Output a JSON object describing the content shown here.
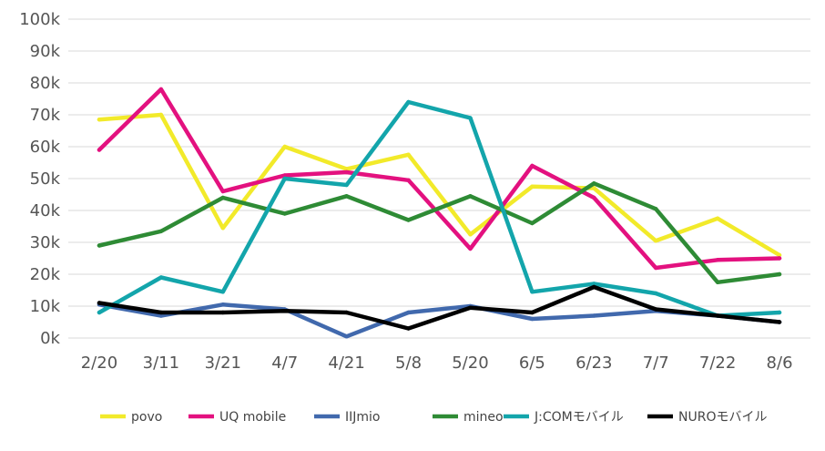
{
  "chart_data": {
    "type": "line",
    "title": "",
    "xlabel": "",
    "ylabel": "",
    "categories": [
      "2/20",
      "3/11",
      "3/21",
      "4/7",
      "4/21",
      "5/8",
      "5/20",
      "6/5",
      "6/23",
      "7/7",
      "7/22",
      "8/6"
    ],
    "ylim": [
      0,
      100000
    ],
    "yticks": [
      {
        "value": 0,
        "label": "0k"
      },
      {
        "value": 10000,
        "label": "10k"
      },
      {
        "value": 20000,
        "label": "20k"
      },
      {
        "value": 30000,
        "label": "30k"
      },
      {
        "value": 40000,
        "label": "40k"
      },
      {
        "value": 50000,
        "label": "50k"
      },
      {
        "value": 60000,
        "label": "60k"
      },
      {
        "value": 70000,
        "label": "70k"
      },
      {
        "value": 80000,
        "label": "80k"
      },
      {
        "value": 90000,
        "label": "90k"
      },
      {
        "value": 100000,
        "label": "100k"
      }
    ],
    "grid": true,
    "legend_position": "bottom",
    "series": [
      {
        "name": "povo",
        "color": "#f2ea2a",
        "values": [
          68500,
          70000,
          34500,
          60000,
          53000,
          57500,
          32500,
          47500,
          47000,
          30500,
          37500,
          26000
        ]
      },
      {
        "name": "UQ mobile",
        "color": "#e3117f",
        "values": [
          59000,
          78000,
          46000,
          51000,
          52000,
          49500,
          28000,
          54000,
          44000,
          22000,
          24500,
          25000
        ]
      },
      {
        "name": "IIJmio",
        "color": "#4169ad",
        "values": [
          10500,
          7000,
          10500,
          9000,
          500,
          8000,
          10000,
          6000,
          7000,
          8500,
          7000,
          5000
        ]
      },
      {
        "name": "mineo",
        "color": "#2e8b35",
        "values": [
          29000,
          33500,
          44000,
          39000,
          44500,
          37000,
          44500,
          36000,
          48500,
          40500,
          17500,
          20000
        ]
      },
      {
        "name": "J:COMモバイル",
        "color": "#13a5ab",
        "values": [
          8000,
          19000,
          14500,
          50000,
          48000,
          74000,
          69000,
          14500,
          17000,
          14000,
          7000,
          8000
        ]
      },
      {
        "name": "NUROモバイル",
        "color": "#000000",
        "values": [
          11000,
          8000,
          8000,
          8500,
          8000,
          3000,
          9500,
          8000,
          16000,
          9000,
          7000,
          5000
        ]
      }
    ]
  }
}
